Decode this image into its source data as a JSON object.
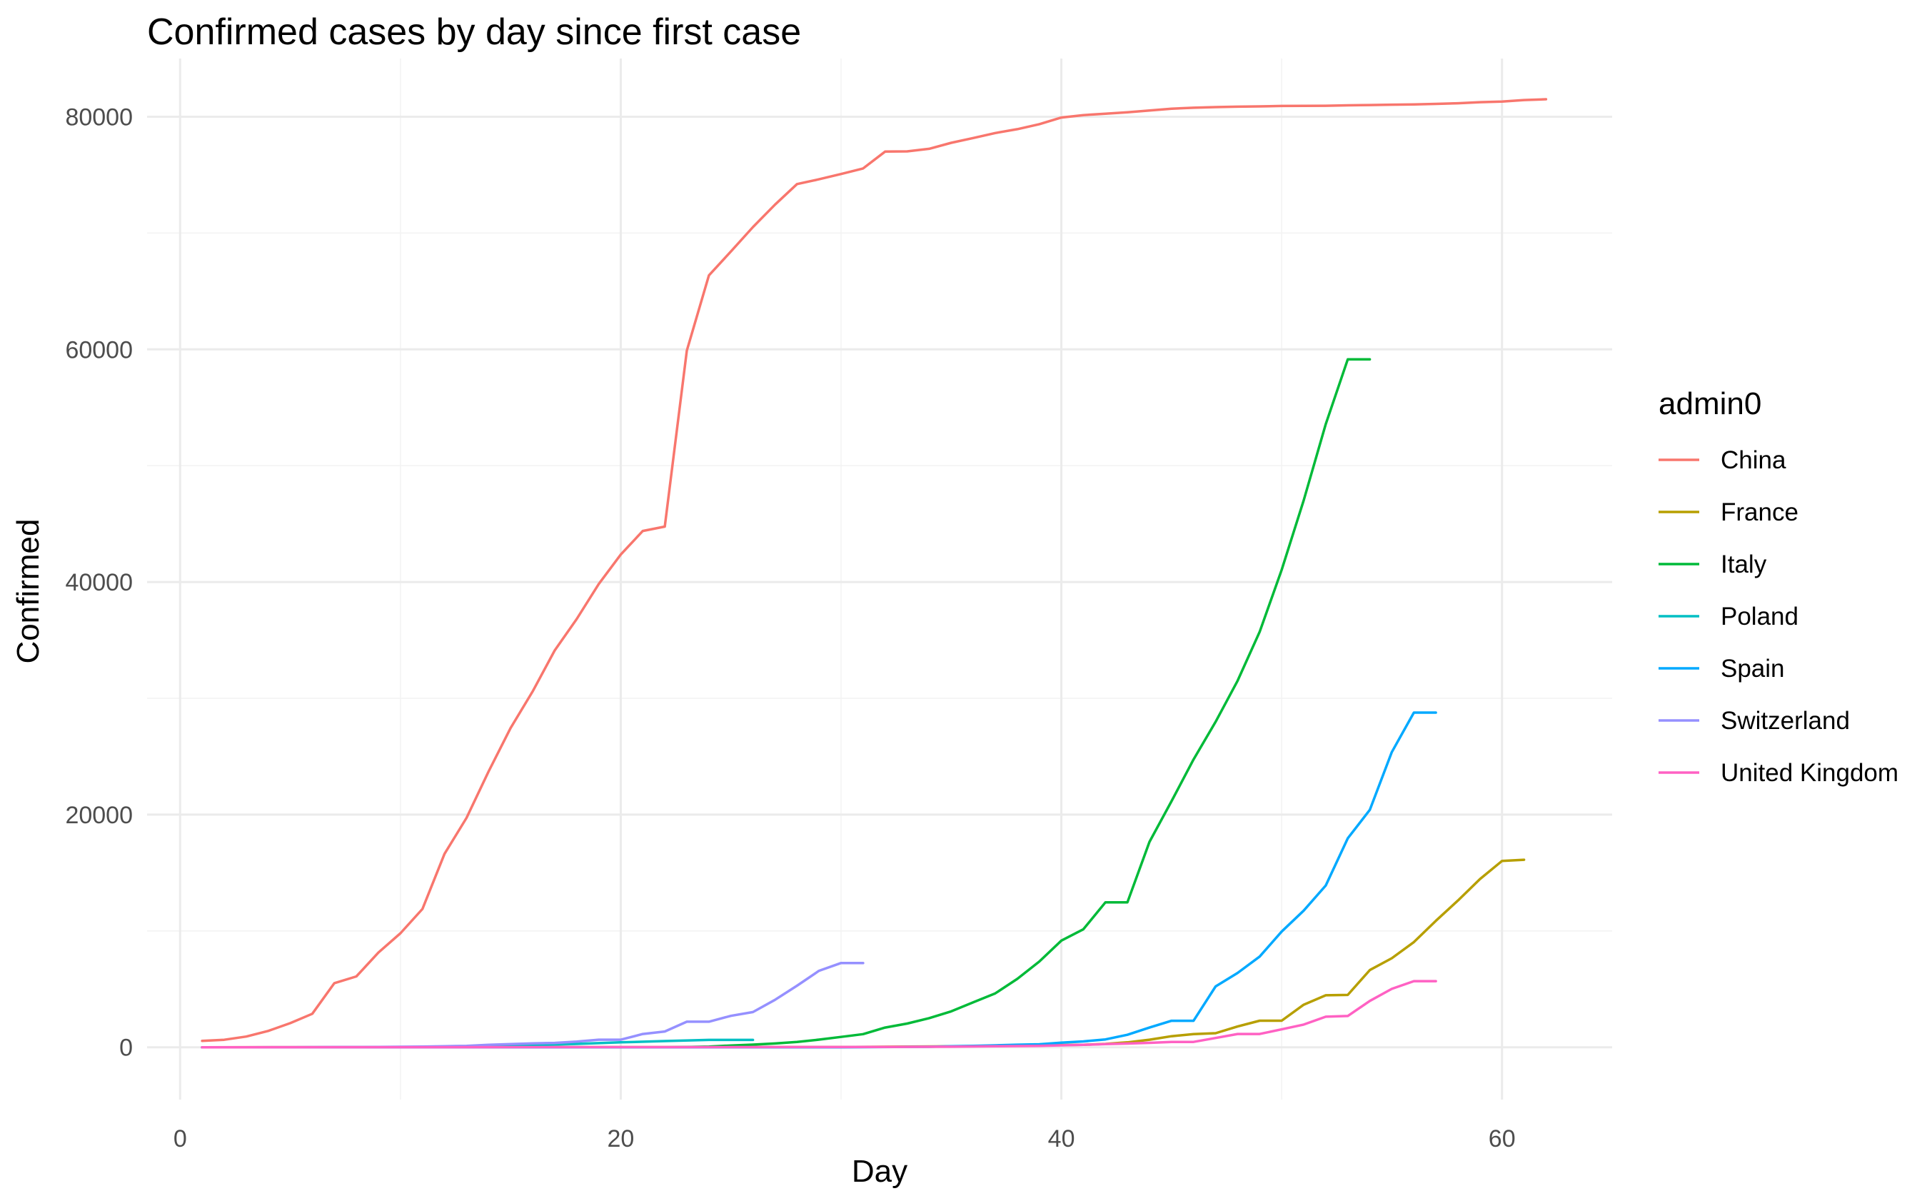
{
  "chart_data": {
    "type": "line",
    "title": "Confirmed cases by day since first case",
    "xlabel": "Day",
    "ylabel": "Confirmed",
    "xlim": [
      -1.5,
      65
    ],
    "ylim": [
      -4500,
      85000
    ],
    "x_ticks": [
      0,
      20,
      40,
      60
    ],
    "y_ticks": [
      0,
      20000,
      40000,
      60000,
      80000
    ],
    "grid": true,
    "legend": {
      "title": "admin0",
      "position": "right"
    },
    "series": [
      {
        "name": "China",
        "color": "#F8766D",
        "points": [
          [
            1,
            548
          ],
          [
            2,
            643
          ],
          [
            3,
            920
          ],
          [
            4,
            1406
          ],
          [
            5,
            2075
          ],
          [
            6,
            2877
          ],
          [
            7,
            5509
          ],
          [
            8,
            6087
          ],
          [
            9,
            8141
          ],
          [
            10,
            9802
          ],
          [
            11,
            11891
          ],
          [
            12,
            16630
          ],
          [
            13,
            19716
          ],
          [
            14,
            23707
          ],
          [
            15,
            27440
          ],
          [
            16,
            30587
          ],
          [
            17,
            34110
          ],
          [
            18,
            36814
          ],
          [
            19,
            39829
          ],
          [
            20,
            42354
          ],
          [
            21,
            44386
          ],
          [
            22,
            44759
          ],
          [
            23,
            59895
          ],
          [
            24,
            66358
          ],
          [
            25,
            68413
          ],
          [
            26,
            70513
          ],
          [
            27,
            72434
          ],
          [
            28,
            74211
          ],
          [
            29,
            74619
          ],
          [
            30,
            75077
          ],
          [
            31,
            75550
          ],
          [
            32,
            77001
          ],
          [
            33,
            77022
          ],
          [
            34,
            77241
          ],
          [
            35,
            77754
          ],
          [
            36,
            78166
          ],
          [
            37,
            78600
          ],
          [
            38,
            78928
          ],
          [
            39,
            79356
          ],
          [
            40,
            79932
          ],
          [
            41,
            80136
          ],
          [
            42,
            80261
          ],
          [
            43,
            80386
          ],
          [
            44,
            80537
          ],
          [
            45,
            80690
          ],
          [
            46,
            80770
          ],
          [
            47,
            80823
          ],
          [
            48,
            80860
          ],
          [
            49,
            80887
          ],
          [
            50,
            80921
          ],
          [
            51,
            80932
          ],
          [
            52,
            80945
          ],
          [
            53,
            80977
          ],
          [
            54,
            81003
          ],
          [
            55,
            81033
          ],
          [
            56,
            81058
          ],
          [
            57,
            81102
          ],
          [
            58,
            81156
          ],
          [
            59,
            81250
          ],
          [
            60,
            81305
          ],
          [
            61,
            81435
          ],
          [
            62,
            81498
          ]
        ]
      },
      {
        "name": "France",
        "color": "#B79F00",
        "points": [
          [
            1,
            0
          ],
          [
            20,
            12
          ],
          [
            30,
            20
          ],
          [
            36,
            100
          ],
          [
            38,
            130
          ],
          [
            40,
            191
          ],
          [
            41,
            212
          ],
          [
            42,
            285
          ],
          [
            43,
            423
          ],
          [
            44,
            653
          ],
          [
            45,
            949
          ],
          [
            46,
            1126
          ],
          [
            47,
            1209
          ],
          [
            48,
            1784
          ],
          [
            49,
            2281
          ],
          [
            50,
            2284
          ],
          [
            51,
            3661
          ],
          [
            52,
            4469
          ],
          [
            53,
            4499
          ],
          [
            54,
            6633
          ],
          [
            55,
            7652
          ],
          [
            56,
            9043
          ],
          [
            57,
            10871
          ],
          [
            58,
            12612
          ],
          [
            59,
            14459
          ],
          [
            60,
            16018
          ],
          [
            61,
            16117
          ]
        ]
      },
      {
        "name": "Italy",
        "color": "#00BA38",
        "points": [
          [
            1,
            0
          ],
          [
            22,
            2
          ],
          [
            23,
            20
          ],
          [
            24,
            62
          ],
          [
            25,
            155
          ],
          [
            26,
            229
          ],
          [
            27,
            322
          ],
          [
            28,
            453
          ],
          [
            29,
            655
          ],
          [
            30,
            888
          ],
          [
            31,
            1128
          ],
          [
            32,
            1694
          ],
          [
            33,
            2036
          ],
          [
            34,
            2502
          ],
          [
            35,
            3089
          ],
          [
            36,
            3858
          ],
          [
            37,
            4636
          ],
          [
            38,
            5883
          ],
          [
            39,
            7375
          ],
          [
            40,
            9172
          ],
          [
            41,
            10149
          ],
          [
            42,
            12462
          ],
          [
            43,
            12462
          ],
          [
            44,
            17660
          ],
          [
            45,
            21157
          ],
          [
            46,
            24747
          ],
          [
            47,
            27980
          ],
          [
            48,
            31506
          ],
          [
            49,
            35713
          ],
          [
            50,
            41035
          ],
          [
            51,
            47021
          ],
          [
            52,
            53578
          ],
          [
            53,
            59138
          ],
          [
            54,
            59138
          ]
        ]
      },
      {
        "name": "Poland",
        "color": "#00BFC4",
        "points": [
          [
            1,
            0
          ],
          [
            5,
            1
          ],
          [
            8,
            5
          ],
          [
            10,
            16
          ],
          [
            12,
            31
          ],
          [
            14,
            68
          ],
          [
            16,
            177
          ],
          [
            18,
            287
          ],
          [
            20,
            425
          ],
          [
            22,
            536
          ],
          [
            24,
            634
          ],
          [
            26,
            634
          ]
        ]
      },
      {
        "name": "Spain",
        "color": "#00A9FF",
        "points": [
          [
            1,
            0
          ],
          [
            30,
            2
          ],
          [
            34,
            45
          ],
          [
            35,
            84
          ],
          [
            36,
            120
          ],
          [
            37,
            165
          ],
          [
            38,
            222
          ],
          [
            39,
            259
          ],
          [
            40,
            400
          ],
          [
            41,
            500
          ],
          [
            42,
            673
          ],
          [
            43,
            1073
          ],
          [
            44,
            1695
          ],
          [
            45,
            2277
          ],
          [
            46,
            2277
          ],
          [
            47,
            5232
          ],
          [
            48,
            6391
          ],
          [
            49,
            7798
          ],
          [
            50,
            9942
          ],
          [
            51,
            11748
          ],
          [
            52,
            13910
          ],
          [
            53,
            17963
          ],
          [
            54,
            20410
          ],
          [
            55,
            25374
          ],
          [
            56,
            28768
          ],
          [
            57,
            28768
          ]
        ]
      },
      {
        "name": "Switzerland",
        "color": "#9590FF",
        "points": [
          [
            1,
            0
          ],
          [
            3,
            1
          ],
          [
            5,
            8
          ],
          [
            7,
            18
          ],
          [
            9,
            27
          ],
          [
            10,
            42
          ],
          [
            11,
            56
          ],
          [
            12,
            90
          ],
          [
            13,
            114
          ],
          [
            14,
            214
          ],
          [
            15,
            268
          ],
          [
            16,
            337
          ],
          [
            17,
            374
          ],
          [
            18,
            491
          ],
          [
            19,
            652
          ],
          [
            20,
            652
          ],
          [
            21,
            1139
          ],
          [
            22,
            1359
          ],
          [
            23,
            2200
          ],
          [
            24,
            2200
          ],
          [
            25,
            2700
          ],
          [
            26,
            3028
          ],
          [
            27,
            4075
          ],
          [
            28,
            5294
          ],
          [
            29,
            6575
          ],
          [
            30,
            7245
          ],
          [
            31,
            7245
          ]
        ]
      },
      {
        "name": "United Kingdom",
        "color": "#FF61C3",
        "points": [
          [
            1,
            0
          ],
          [
            20,
            9
          ],
          [
            30,
            20
          ],
          [
            33,
            36
          ],
          [
            35,
            51
          ],
          [
            37,
            85
          ],
          [
            39,
            115
          ],
          [
            40,
            163
          ],
          [
            41,
            206
          ],
          [
            42,
            273
          ],
          [
            43,
            321
          ],
          [
            44,
            382
          ],
          [
            45,
            456
          ],
          [
            46,
            460
          ],
          [
            47,
            798
          ],
          [
            48,
            1140
          ],
          [
            49,
            1140
          ],
          [
            50,
            1543
          ],
          [
            51,
            1950
          ],
          [
            52,
            2626
          ],
          [
            53,
            2689
          ],
          [
            54,
            3983
          ],
          [
            55,
            5018
          ],
          [
            56,
            5683
          ],
          [
            57,
            5683
          ]
        ]
      }
    ]
  }
}
